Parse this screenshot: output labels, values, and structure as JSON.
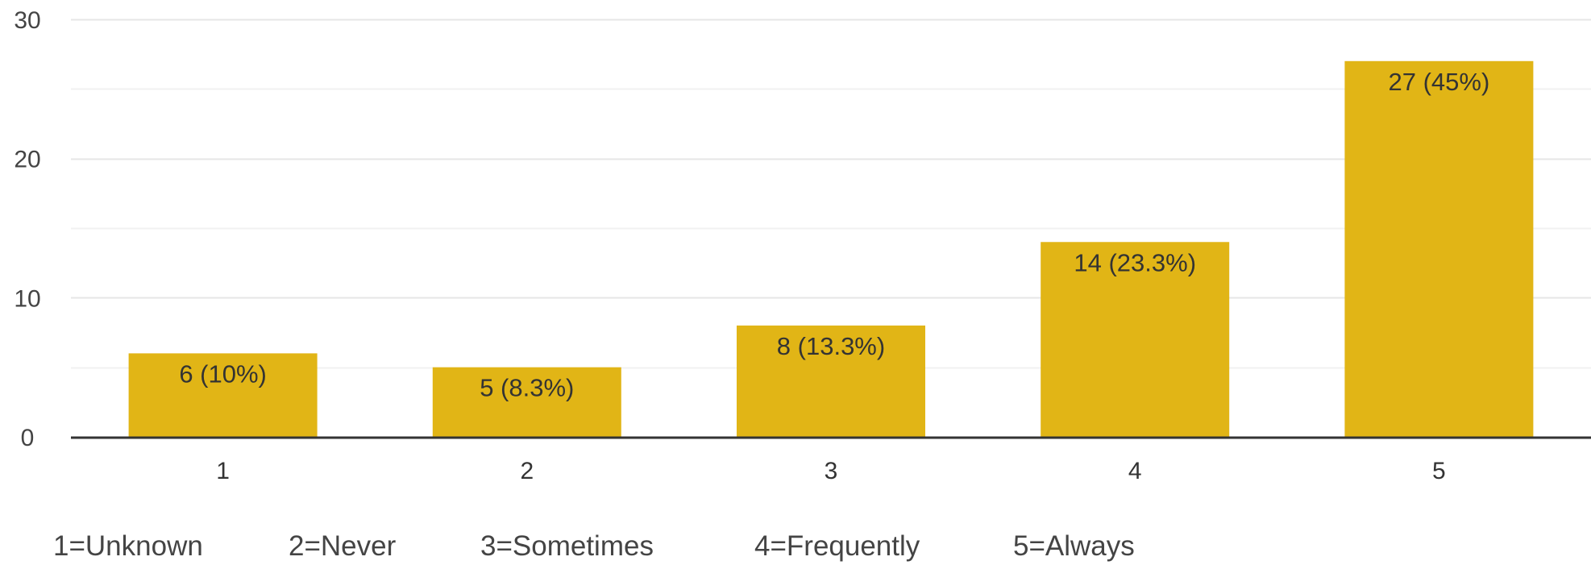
{
  "chart_data": {
    "type": "bar",
    "categories": [
      "1",
      "2",
      "3",
      "4",
      "5"
    ],
    "values": [
      6,
      5,
      8,
      14,
      27
    ],
    "data_labels": [
      "6 (10%)",
      "5 (8.3%)",
      "8 (13.3%)",
      "14 (23.3%)",
      "27 (45%)"
    ],
    "yticks": [
      "0",
      "10",
      "20",
      "30"
    ],
    "ylim": [
      0,
      30
    ],
    "grid": true,
    "bar_color": "#E1B516",
    "grid_color": "#EDEDED",
    "baseline_color": "#333333"
  },
  "legend": {
    "items": [
      "1=Unknown",
      "2=Never",
      "3=Sometimes",
      "4=Frequently",
      "5=Always"
    ]
  }
}
